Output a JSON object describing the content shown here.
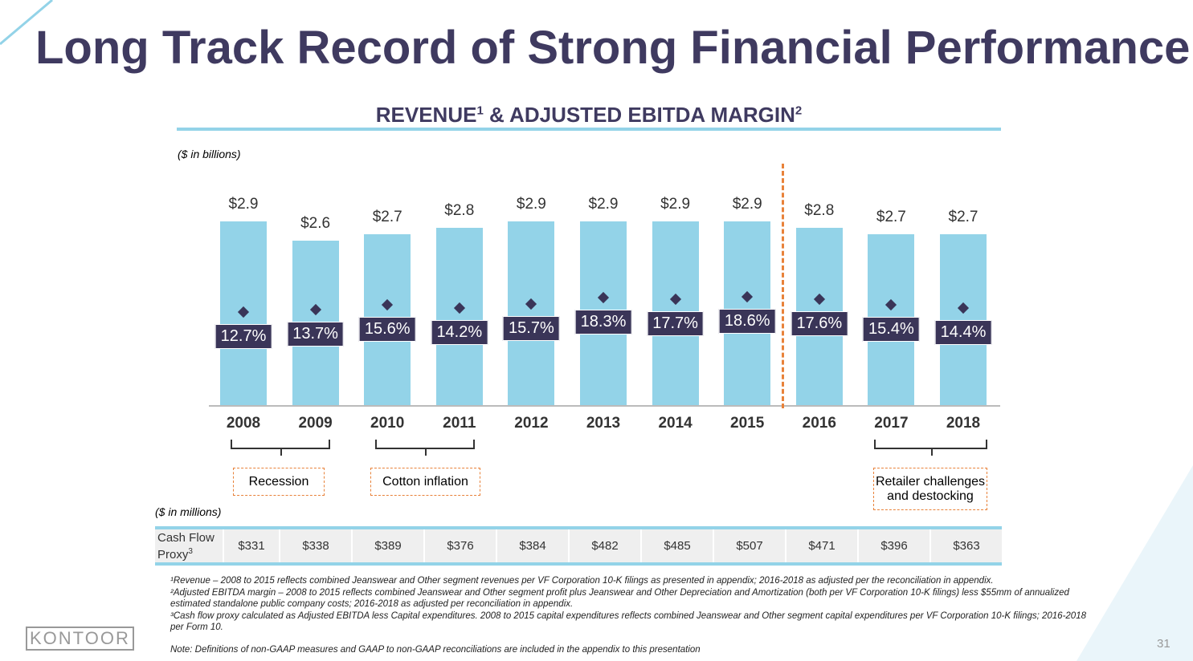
{
  "title": "Long Track Record of Strong Financial Performance",
  "chart_data": {
    "type": "bar",
    "title": "REVENUE & ADJUSTED EBITDA MARGIN",
    "title_parts": {
      "revenue": "REVENUE",
      "sup1": "1",
      "amp": " & ADJUSTED EBITDA MARGIN",
      "sup2": "2"
    },
    "unit_label": "($ in billions)",
    "categories": [
      "2008",
      "2009",
      "2010",
      "2011",
      "2012",
      "2013",
      "2014",
      "2015",
      "2016",
      "2017",
      "2018"
    ],
    "series": [
      {
        "name": "Revenue",
        "values": [
          2.9,
          2.6,
          2.7,
          2.8,
          2.9,
          2.9,
          2.9,
          2.9,
          2.8,
          2.7,
          2.7
        ],
        "labels": [
          "$2.9",
          "$2.6",
          "$2.7",
          "$2.8",
          "$2.9",
          "$2.9",
          "$2.9",
          "$2.9",
          "$2.8",
          "$2.7",
          "$2.7"
        ]
      },
      {
        "name": "Adjusted EBITDA Margin",
        "values": [
          12.7,
          13.7,
          15.6,
          14.2,
          15.7,
          18.3,
          17.7,
          18.6,
          17.6,
          15.4,
          14.4
        ],
        "labels": [
          "12.7%",
          "13.7%",
          "15.6%",
          "14.2%",
          "15.7%",
          "18.3%",
          "17.7%",
          "18.6%",
          "17.6%",
          "15.4%",
          "14.4%"
        ]
      }
    ],
    "annotations": [
      "Recession",
      "Cotton inflation",
      "Retailer challenges and destocking"
    ]
  },
  "colors": {
    "bar": "#93d3e8",
    "marker": "#3a3558",
    "title": "#3f3a60",
    "divider": "#e8823a"
  },
  "cash_flow": {
    "unit_label": "($ in millions)",
    "label": "Cash Flow Proxy",
    "sup": "3",
    "values": [
      "$331",
      "$338",
      "$389",
      "$376",
      "$384",
      "$482",
      "$485",
      "$507",
      "$471",
      "$396",
      "$363"
    ]
  },
  "footnotes": [
    "¹Revenue – 2008 to 2015 reflects combined Jeanswear and Other segment revenues per VF Corporation 10-K filings as presented in appendix; 2016-2018 as adjusted per the reconciliation in appendix.",
    "²Adjusted EBITDA margin – 2008 to 2015 reflects combined Jeanswear and Other segment profit plus Jeanswear and Other Depreciation and Amortization (both per VF Corporation 10-K filings) less $55mm of annualized estimated standalone public company costs; 2016-2018  as adjusted per reconciliation in appendix.",
    "³Cash flow proxy calculated as Adjusted EBITDA less Capital expenditures. 2008 to 2015 capital expenditures reflects combined Jeanswear and Other segment capital expenditures per VF Corporation 10-K filings; 2016-2018 per Form 10.",
    "Note: Definitions of non-GAAP measures and GAAP to non-GAAP reconciliations are included in the appendix to this presentation"
  ],
  "logo": "KONTOOR",
  "page_number": "31"
}
